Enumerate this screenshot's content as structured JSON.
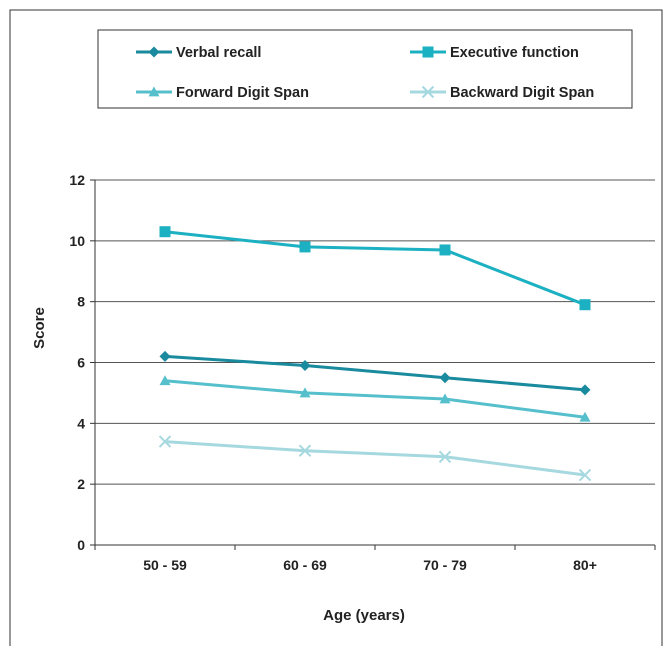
{
  "chart_data": {
    "type": "line",
    "title": "",
    "xlabel": "Age (years)",
    "ylabel": "Score",
    "categories": [
      "50 - 59",
      "60 - 69",
      "70 - 79",
      "80+"
    ],
    "ylim": [
      0,
      12
    ],
    "yticks": [
      "0",
      "2",
      "4",
      "6",
      "8",
      "10",
      "12"
    ],
    "grid": true,
    "legend_position": "top",
    "series": [
      {
        "name": "Verbal recall",
        "values": [
          6.2,
          5.9,
          5.5,
          5.1
        ],
        "color": "#1a8a9e",
        "marker": "diamond"
      },
      {
        "name": "Executive function",
        "values": [
          10.3,
          9.8,
          9.7,
          7.9
        ],
        "color": "#1bb0c2",
        "marker": "square"
      },
      {
        "name": "Forward Digit Span",
        "values": [
          5.4,
          5.0,
          4.8,
          4.2
        ],
        "color": "#55bfcc",
        "marker": "triangle"
      },
      {
        "name": "Backward Digit Span",
        "values": [
          3.4,
          3.1,
          2.9,
          2.3
        ],
        "color": "#a6d8e0",
        "marker": "x"
      }
    ]
  }
}
